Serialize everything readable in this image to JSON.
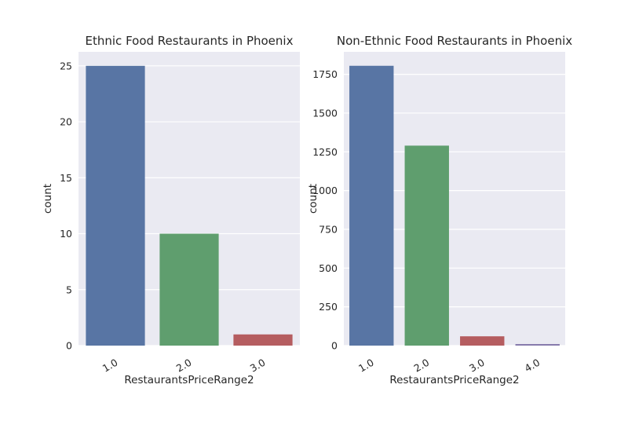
{
  "chart_data": [
    {
      "type": "bar",
      "title": "Ethnic Food Restaurants in Phoenix",
      "xlabel": "RestaurantsPriceRange2",
      "ylabel": "count",
      "categories": [
        "1.0",
        "2.0",
        "3.0"
      ],
      "values": [
        25,
        10,
        1
      ],
      "colors": [
        "#5875a4",
        "#5f9e6e",
        "#b55d60"
      ],
      "ylim": [
        0,
        26.25
      ],
      "yticks": [
        0,
        5,
        10,
        15,
        20,
        25
      ],
      "grid": true
    },
    {
      "type": "bar",
      "title": "Non-Ethnic Food Restaurants in Phoenix",
      "xlabel": "RestaurantsPriceRange2",
      "ylabel": "count",
      "categories": [
        "1.0",
        "2.0",
        "3.0",
        "4.0"
      ],
      "values": [
        1805,
        1290,
        60,
        10
      ],
      "colors": [
        "#5875a4",
        "#5f9e6e",
        "#b55d60",
        "#857aab"
      ],
      "ylim": [
        0,
        1895
      ],
      "yticks": [
        0,
        250,
        500,
        750,
        1000,
        1250,
        1500,
        1750
      ],
      "grid": true
    }
  ]
}
